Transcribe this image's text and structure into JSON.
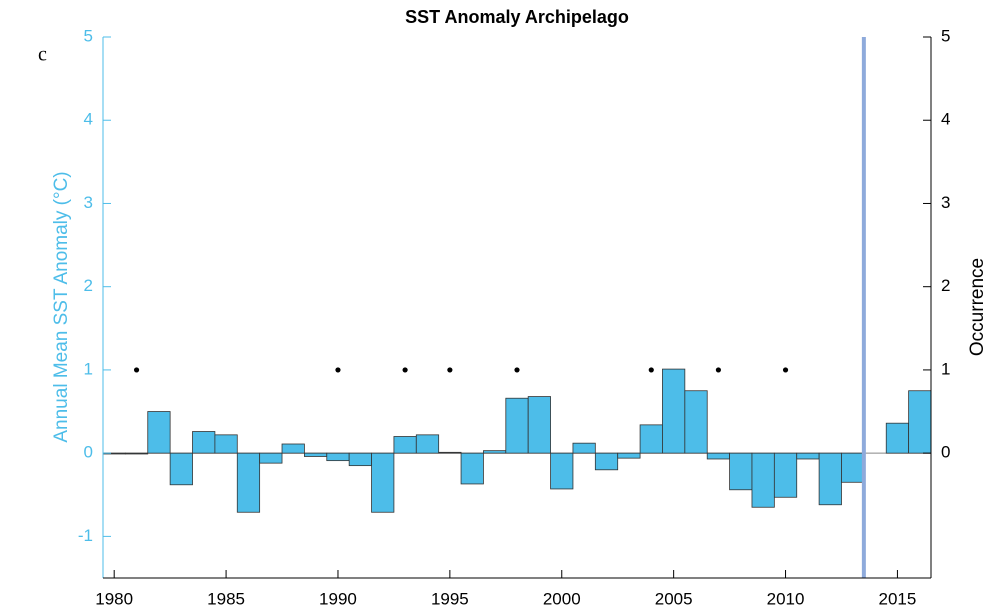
{
  "chart_data": {
    "type": "bar",
    "title": "SST Anomaly Archipelago",
    "panel_label": "c",
    "ylabel": "Annual Mean SST Anomaly (°C)",
    "y2label": "Occurrence",
    "x": [
      1980,
      1981,
      1982,
      1983,
      1984,
      1985,
      1986,
      1987,
      1988,
      1989,
      1990,
      1991,
      1992,
      1993,
      1994,
      1995,
      1996,
      1997,
      1998,
      1999,
      2000,
      2001,
      2002,
      2003,
      2004,
      2005,
      2006,
      2007,
      2008,
      2009,
      2010,
      2011,
      2012,
      2013,
      2014,
      2015,
      2016
    ],
    "values": [
      -0.01,
      -0.01,
      0.5,
      -0.38,
      0.26,
      0.22,
      -0.71,
      -0.12,
      0.11,
      -0.04,
      -0.09,
      -0.15,
      -0.71,
      0.2,
      0.22,
      0.01,
      -0.37,
      0.03,
      0.66,
      0.68,
      -0.43,
      0.12,
      -0.2,
      -0.06,
      0.34,
      1.01,
      0.75,
      -0.07,
      -0.44,
      -0.65,
      -0.53,
      -0.07,
      -0.62,
      -0.35,
      null,
      0.36,
      0.75
    ],
    "color": "#4dbde9",
    "xlim": [
      1979.5,
      2016.5
    ],
    "xticks": [
      1980,
      1985,
      1990,
      1995,
      2000,
      2005,
      2010,
      2015
    ],
    "ylim": [
      -1.5,
      5
    ],
    "yticks": [
      -1,
      0,
      1,
      2,
      3,
      4,
      5
    ],
    "y2lim": [
      -1.5,
      5
    ],
    "y2ticks": [
      0,
      1,
      2,
      3,
      4,
      5
    ],
    "occurrence": {
      "type": "scatter",
      "axis": "y2",
      "color": "#000000",
      "x": [
        1981,
        1990,
        1993,
        1995,
        1998,
        2004,
        2007,
        2010
      ],
      "values": [
        1,
        1,
        1,
        1,
        1,
        1,
        1,
        1
      ]
    },
    "vline": {
      "x": 2013.5,
      "color": "#8eaadb"
    }
  }
}
